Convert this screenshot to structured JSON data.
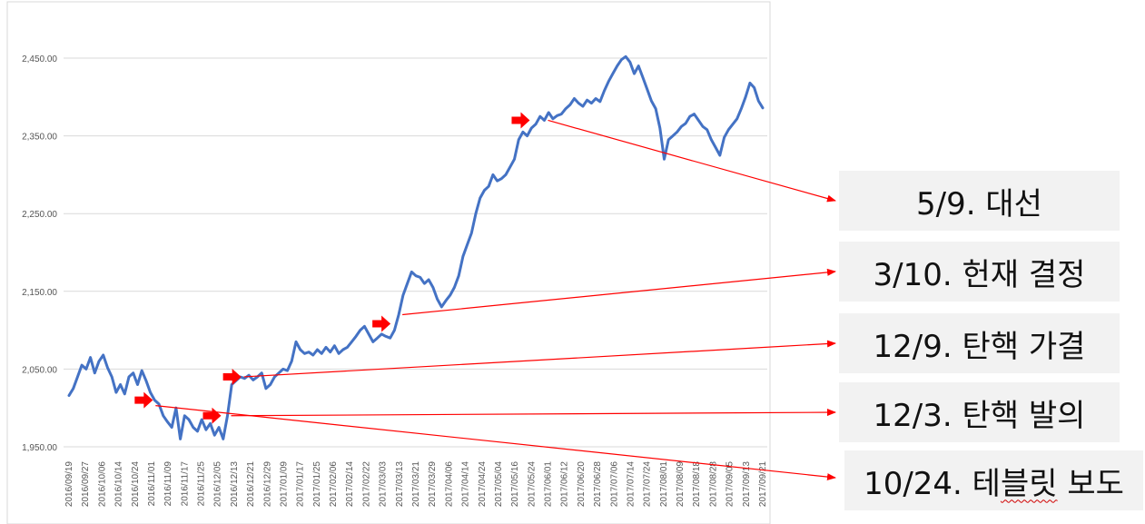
{
  "colors": {
    "series": "#4472c4",
    "arrow": "#ff0000",
    "grid": "#d9d9d9",
    "box_bg": "#f2f2f2"
  },
  "chart_data": {
    "type": "line",
    "title": "",
    "xlabel": "",
    "ylabel": "",
    "ylim": [
      1940,
      2490
    ],
    "yticks": [
      "1,950.00",
      "2,050.00",
      "2,150.00",
      "2,250.00",
      "2,350.00",
      "2,450.00"
    ],
    "ytick_values": [
      1950,
      2050,
      2150,
      2250,
      2350,
      2450
    ],
    "grid": true,
    "xtick_labels": [
      "2016/09/19",
      "2016/09/27",
      "2016/10/06",
      "2016/10/14",
      "2016/10/24",
      "2016/11/01",
      "2016/11/09",
      "2016/11/17",
      "2016/11/25",
      "2016/12/05",
      "2016/12/13",
      "2016/12/21",
      "2016/12/29",
      "2017/01/09",
      "2017/01/17",
      "2017/01/25",
      "2017/02/06",
      "2017/02/14",
      "2017/02/22",
      "2017/03/03",
      "2017/03/13",
      "2017/03/21",
      "2017/03/29",
      "2017/04/06",
      "2017/04/14",
      "2017/04/24",
      "2017/05/04",
      "2017/05/16",
      "2017/05/24",
      "2017/06/01",
      "2017/06/12",
      "2017/06/20",
      "2017/06/28",
      "2017/07/06",
      "2017/07/14",
      "2017/07/24",
      "2017/08/01",
      "2017/08/09",
      "2017/08/18",
      "2017/08/28",
      "2017/09/05",
      "2017/09/13",
      "2017/09/21"
    ],
    "series": [
      {
        "values": [
          2016,
          2025,
          2040,
          2055,
          2050,
          2065,
          2045,
          2060,
          2068,
          2052,
          2040,
          2020,
          2030,
          2018,
          2040,
          2045,
          2030,
          2048,
          2035,
          2020,
          2010,
          2005,
          1990,
          1982,
          1975,
          2000,
          1960,
          1990,
          1985,
          1975,
          1970,
          1985,
          1972,
          1980,
          1965,
          1975,
          1960,
          1990,
          2030,
          2035,
          2040,
          2038,
          2042,
          2036,
          2040,
          2045,
          2025,
          2030,
          2040,
          2045,
          2050,
          2048,
          2060,
          2085,
          2075,
          2070,
          2072,
          2068,
          2075,
          2070,
          2078,
          2072,
          2080,
          2070,
          2075,
          2078,
          2085,
          2092,
          2100,
          2105,
          2095,
          2085,
          2090,
          2095,
          2092,
          2090,
          2100,
          2120,
          2145,
          2160,
          2175,
          2170,
          2168,
          2160,
          2165,
          2155,
          2140,
          2130,
          2138,
          2145,
          2155,
          2170,
          2195,
          2210,
          2225,
          2250,
          2270,
          2280,
          2285,
          2300,
          2292,
          2295,
          2300,
          2310,
          2320,
          2345,
          2355,
          2350,
          2360,
          2365,
          2375,
          2370,
          2380,
          2372,
          2376,
          2378,
          2385,
          2390,
          2398,
          2392,
          2388,
          2396,
          2392,
          2398,
          2394,
          2408,
          2420,
          2430,
          2440,
          2448,
          2452,
          2445,
          2430,
          2440,
          2425,
          2410,
          2395,
          2385,
          2360,
          2320,
          2345,
          2350,
          2355,
          2362,
          2366,
          2375,
          2378,
          2370,
          2362,
          2358,
          2345,
          2335,
          2325,
          2348,
          2358,
          2365,
          2372,
          2385,
          2400,
          2418,
          2412,
          2395,
          2386
        ]
      }
    ]
  },
  "annotations": [
    {
      "label": "5/9. 대선",
      "point": 111
    },
    {
      "label": "3/10. 헌재 결정",
      "point": 77
    },
    {
      "label": "12/9. 탄핵 가결",
      "point": 40
    },
    {
      "label": "12/3. 탄핵 발의",
      "point": 37
    },
    {
      "label_main": "10/24. 테",
      "label_marked": "블릿",
      "label_end": " 보도",
      "point": 20
    }
  ]
}
